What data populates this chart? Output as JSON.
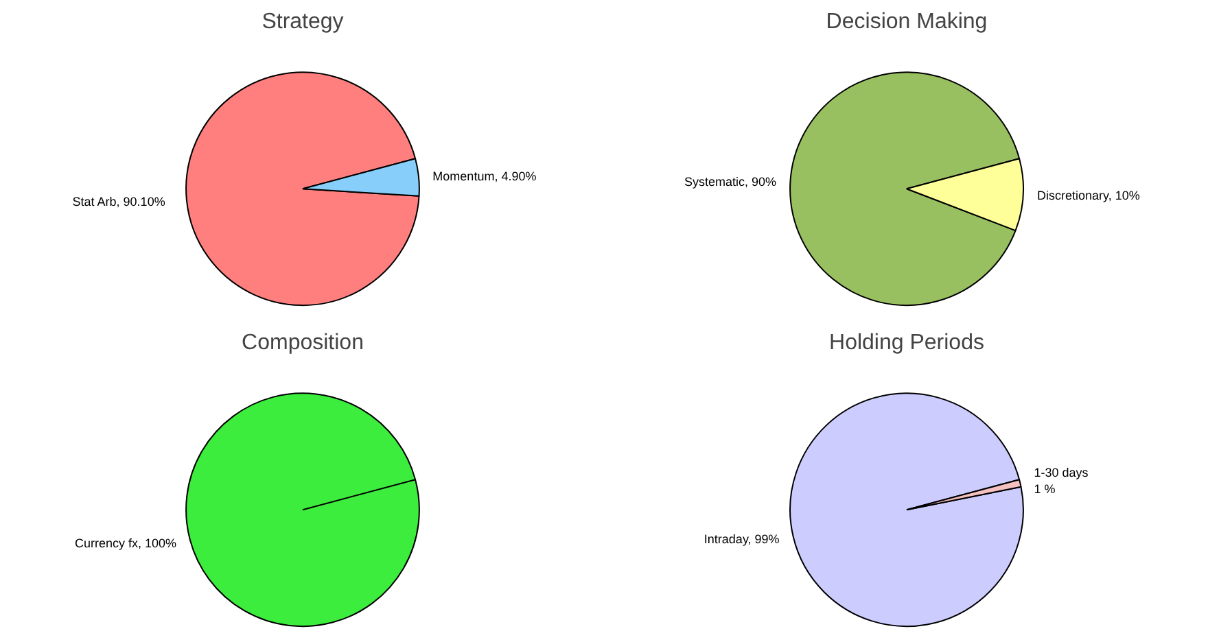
{
  "chart_data": [
    {
      "type": "pie",
      "title": "Strategy",
      "categories": [
        "Stat Arb,   90.10%",
        "Momentum, 4.90%"
      ],
      "values": [
        90.1,
        4.9
      ],
      "colors": [
        "#ff7f7f",
        "#87cefa"
      ]
    },
    {
      "type": "pie",
      "title": "Decision Making",
      "categories": [
        "Systematic, 90%",
        "Discretionary, 10%"
      ],
      "values": [
        90,
        10
      ],
      "colors": [
        "#98bf60",
        "#ffff99"
      ]
    },
    {
      "type": "pie",
      "title": "Composition",
      "categories": [
        "Currency fx, 100%"
      ],
      "values": [
        100
      ],
      "colors": [
        "#3ded3d"
      ]
    },
    {
      "type": "pie",
      "title": "Holding Periods",
      "categories": [
        "Intraday, 99%",
        "1-30 days\n1 %"
      ],
      "values": [
        99,
        1
      ],
      "colors": [
        "#ccccff",
        "#f4c0c0"
      ]
    }
  ]
}
